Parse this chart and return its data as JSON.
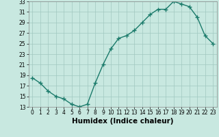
{
  "x": [
    0,
    1,
    2,
    3,
    4,
    5,
    6,
    7,
    8,
    9,
    10,
    11,
    12,
    13,
    14,
    15,
    16,
    17,
    18,
    19,
    20,
    21,
    22,
    23
  ],
  "y": [
    18.5,
    17.5,
    16.0,
    15.0,
    14.5,
    13.5,
    13.0,
    13.5,
    17.5,
    21.0,
    24.0,
    26.0,
    26.5,
    27.5,
    29.0,
    30.5,
    31.5,
    31.5,
    33.0,
    32.5,
    32.0,
    30.0,
    26.5,
    25.0
  ],
  "line_color": "#1a7a6a",
  "marker": "+",
  "background_color": "#c8e8e0",
  "grid_color": "#a0c8c0",
  "xlabel": "Humidex (Indice chaleur)",
  "ylim": [
    13,
    33
  ],
  "xlim_min": -0.5,
  "xlim_max": 23.5,
  "yticks": [
    13,
    15,
    17,
    19,
    21,
    23,
    25,
    27,
    29,
    31,
    33
  ],
  "xticks": [
    0,
    1,
    2,
    3,
    4,
    5,
    6,
    7,
    8,
    9,
    10,
    11,
    12,
    13,
    14,
    15,
    16,
    17,
    18,
    19,
    20,
    21,
    22,
    23
  ],
  "tick_fontsize": 5.5,
  "xlabel_fontsize": 7.5,
  "markersize": 4,
  "linewidth": 1.0
}
